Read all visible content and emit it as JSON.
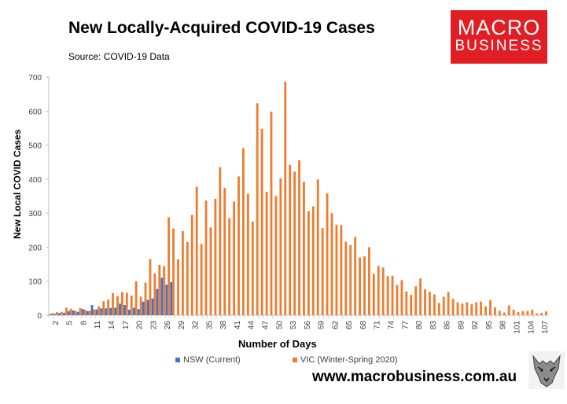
{
  "header": {
    "title": "New Locally-Acquired COVID-19 Cases",
    "source": "Source: COVID-19 Data"
  },
  "logo": {
    "line1": "MACRO",
    "line2": "BUSINESS"
  },
  "footer": {
    "url": "www.macrobusiness.com.au"
  },
  "colors": {
    "nsw": "#4472c4",
    "vic": "#ed7d31",
    "axis": "#bfbfbf"
  },
  "chart_data": {
    "type": "bar",
    "xlabel": "Number of Days",
    "ylabel": "New Local COVID Cases",
    "ylim": [
      0,
      700
    ],
    "yticks": [
      0,
      100,
      200,
      300,
      400,
      500,
      600,
      700
    ],
    "xticks": [
      2,
      5,
      8,
      11,
      14,
      17,
      20,
      23,
      26,
      29,
      32,
      35,
      38,
      41,
      44,
      47,
      50,
      53,
      56,
      59,
      62,
      65,
      68,
      71,
      74,
      77,
      80,
      83,
      86,
      89,
      92,
      95,
      98,
      101,
      104,
      107
    ],
    "x_start": 1,
    "x_end": 107,
    "grid": false,
    "legend_position": "bottom",
    "series": [
      {
        "name": "NSW (Current)",
        "start_day": 1,
        "values": [
          3,
          4,
          6,
          7,
          12,
          14,
          10,
          18,
          12,
          30,
          17,
          20,
          20,
          21,
          22,
          34,
          30,
          16,
          22,
          18,
          40,
          45,
          49,
          77,
          110,
          90,
          97
        ]
      },
      {
        "name": "VIC (Winter-Spring 2020)",
        "start_day": 1,
        "values": [
          6,
          9,
          10,
          22,
          19,
          12,
          21,
          16,
          13,
          17,
          26,
          41,
          46,
          65,
          56,
          68,
          66,
          58,
          100,
          55,
          96,
          165,
          123,
          148,
          144,
          288,
          255,
          164,
          247,
          215,
          295,
          377,
          209,
          337,
          258,
          342,
          435,
          374,
          285,
          334,
          408,
          491,
          357,
          275,
          623,
          548,
          363,
          598,
          350,
          402,
          686,
          442,
          422,
          455,
          392,
          306,
          320,
          399,
          256,
          358,
          300,
          266,
          265,
          216,
          206,
          230,
          170,
          173,
          200,
          121,
          145,
          140,
          115,
          116,
          89,
          103,
          70,
          60,
          85,
          108,
          76,
          69,
          61,
          36,
          54,
          68,
          48,
          38,
          34,
          38,
          32,
          38,
          40,
          26,
          44,
          23,
          13,
          8,
          29,
          16,
          9,
          12,
          12,
          16,
          5,
          7,
          11
        ]
      }
    ]
  }
}
